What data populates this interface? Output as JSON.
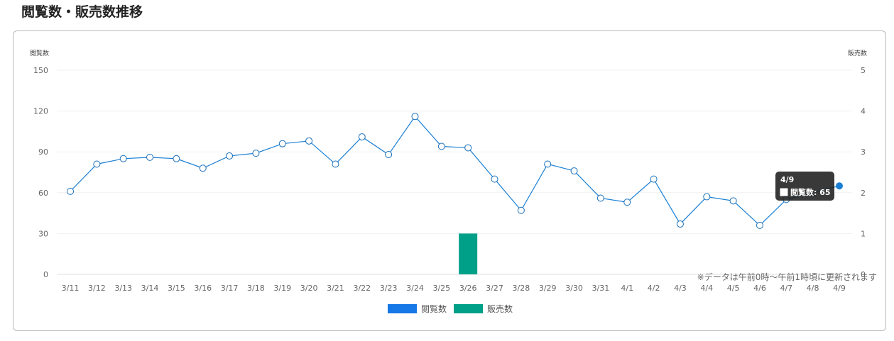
{
  "page": {
    "title": "閲覧数・販売数推移",
    "footnote": "※データは午前0時〜午前1時頃に更新されます"
  },
  "chart_data": {
    "type": "line",
    "categories": [
      "3/11",
      "3/12",
      "3/13",
      "3/14",
      "3/15",
      "3/16",
      "3/17",
      "3/18",
      "3/19",
      "3/20",
      "3/21",
      "3/22",
      "3/23",
      "3/24",
      "3/25",
      "3/26",
      "3/27",
      "3/28",
      "3/29",
      "3/30",
      "3/31",
      "4/1",
      "4/2",
      "4/3",
      "4/4",
      "4/5",
      "4/6",
      "4/7",
      "4/8",
      "4/9"
    ],
    "series": [
      {
        "name": "閲覧数",
        "type": "line",
        "axis": "left",
        "color": "#1a7fd4",
        "values": [
          61,
          81,
          85,
          86,
          85,
          78,
          87,
          89,
          96,
          98,
          81,
          101,
          88,
          116,
          94,
          93,
          70,
          47,
          81,
          76,
          56,
          53,
          70,
          37,
          57,
          54,
          36,
          55,
          60,
          65
        ]
      },
      {
        "name": "販売数",
        "type": "bar",
        "axis": "right",
        "color": "#00a088",
        "values": [
          0,
          0,
          0,
          0,
          0,
          0,
          0,
          0,
          0,
          0,
          0,
          0,
          0,
          0,
          0,
          1,
          0,
          0,
          0,
          0,
          0,
          0,
          0,
          0,
          0,
          0,
          0,
          0,
          0,
          0
        ]
      }
    ],
    "yleft": {
      "label": "閲覧数",
      "range": [
        0,
        150
      ],
      "ticks": [
        "0",
        "30",
        "60",
        "90",
        "120",
        "150"
      ]
    },
    "yright": {
      "label": "販売数",
      "range": [
        0,
        5
      ],
      "ticks": [
        "0",
        "1",
        "2",
        "3",
        "4",
        "5"
      ]
    },
    "legend": {
      "position": "bottom-center",
      "items": [
        {
          "label": "閲覧数",
          "color": "#1677e6"
        },
        {
          "label": "販売数",
          "color": "#00a088"
        }
      ]
    },
    "grid": true,
    "tooltip": {
      "title": "4/9",
      "label": "閲覧数: 65"
    }
  }
}
